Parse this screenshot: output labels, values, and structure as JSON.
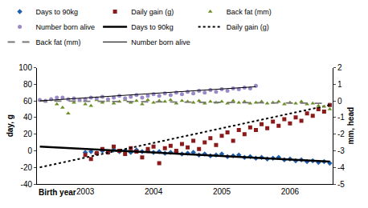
{
  "chart_data": {
    "type": "scatter",
    "x_label": "Birth year",
    "y_label": "day, g",
    "y2_label": "mm, head",
    "categories": [
      null,
      null,
      null,
      null,
      null,
      null,
      null,
      null,
      "2003",
      null,
      null,
      null,
      null,
      null,
      null,
      null,
      null,
      null,
      null,
      null,
      "2004",
      null,
      null,
      null,
      null,
      null,
      null,
      null,
      null,
      null,
      null,
      null,
      "2005",
      null,
      null,
      null,
      null,
      null,
      null,
      null,
      null,
      null,
      null,
      null,
      "2006",
      null,
      null,
      null,
      null,
      null,
      null,
      null
    ],
    "ylim": [
      -40,
      100
    ],
    "yticks": [
      -40,
      -20,
      0,
      20,
      40,
      60,
      80,
      100
    ],
    "y2lim": [
      -5,
      2
    ],
    "y2ticks": [
      -5,
      -4,
      -3,
      -2,
      -1,
      0,
      1,
      2
    ],
    "grid": false,
    "legend": "top",
    "series": [
      {
        "name": "Days to 90kg",
        "type": "scatter",
        "marker": "diamond",
        "color": "#1f5fad",
        "values": [
          null,
          null,
          null,
          null,
          null,
          null,
          null,
          null,
          -2,
          -1,
          -3,
          0,
          -2,
          1,
          -1,
          0,
          -2,
          1,
          -1,
          0,
          -2,
          -1,
          -3,
          -2,
          -1,
          -4,
          -3,
          -2,
          -5,
          -4,
          -6,
          -5,
          -4,
          -7,
          -6,
          -5,
          -8,
          -7,
          -9,
          -8,
          -10,
          -9,
          -8,
          -11,
          -10,
          -12,
          -11,
          -13,
          -12,
          -14,
          -13,
          -15
        ]
      },
      {
        "name": "Daily gain (g)",
        "type": "scatter",
        "marker": "square",
        "color": "#8b1a1a",
        "values": [
          null,
          null,
          null,
          null,
          null,
          null,
          null,
          null,
          -5,
          -10,
          -3,
          2,
          -2,
          5,
          0,
          -4,
          3,
          -1,
          -8,
          2,
          5,
          -15,
          3,
          6,
          0,
          8,
          4,
          12,
          2,
          10,
          15,
          7,
          18,
          22,
          12,
          25,
          20,
          28,
          25,
          32,
          27,
          35,
          30,
          38,
          33,
          40,
          36,
          45,
          42,
          50,
          47,
          55
        ]
      },
      {
        "name": "Back fat (mm)",
        "type": "scatter",
        "marker": "triangle-up",
        "color": "#6b8e23",
        "axis": "y2",
        "values": [
          0.05,
          -0.05,
          0.1,
          -0.2,
          -0.4,
          -0.75,
          -0.1,
          0.0,
          -0.2,
          -0.3,
          0.05,
          -0.1,
          0.0,
          -0.15,
          -0.05,
          0.05,
          -0.1,
          0.0,
          -0.2,
          0.05,
          -0.1,
          0.0,
          -0.05,
          0.05,
          -0.15,
          0.0,
          -0.05,
          -0.1,
          0.0,
          -0.15,
          -0.05,
          -0.1,
          -0.05,
          -0.15,
          0.0,
          -0.1,
          -0.05,
          -0.15,
          -0.1,
          -0.05,
          -0.15,
          -0.1,
          -0.05,
          -0.2,
          -0.1,
          -0.15,
          -0.05,
          -0.2,
          -0.15,
          -0.3,
          -0.35,
          -0.5
        ]
      },
      {
        "name": "Number born alive",
        "type": "scatter",
        "marker": "circle",
        "color": "#9a8ac8",
        "axis": "y2",
        "values": [
          0.05,
          0.0,
          0.1,
          0.2,
          0.2,
          0.1,
          0.15,
          0.05,
          0.1,
          0.2,
          0.15,
          0.25,
          0.1,
          0.2,
          0.3,
          0.15,
          0.25,
          0.35,
          0.2,
          0.3,
          0.4,
          0.3,
          0.45,
          0.35,
          0.5,
          0.4,
          0.55,
          0.45,
          0.6,
          0.5,
          0.65,
          0.55,
          0.7,
          0.6,
          0.75,
          0.7,
          0.8,
          0.75,
          0.9,
          null,
          null,
          null,
          null,
          null,
          null,
          null,
          null,
          null,
          null,
          null,
          null,
          null
        ]
      },
      {
        "name": "Days to 90kg",
        "type": "line",
        "line_style": "thick",
        "color": "#000000",
        "x": [
          0,
          51
        ],
        "values": [
          5,
          -13
        ]
      },
      {
        "name": "Daily gain (g)",
        "type": "line",
        "line_style": "dot",
        "color": "#000000",
        "x": [
          0,
          51
        ],
        "values": [
          -20,
          55
        ]
      },
      {
        "name": "Back fat (mm)",
        "type": "line",
        "line_style": "dash",
        "color": "#777777",
        "axis": "y2",
        "x": [
          0,
          51
        ],
        "values": [
          0.0,
          -0.15
        ]
      },
      {
        "name": "Number born alive",
        "type": "line",
        "line_style": "thin",
        "color": "#000000",
        "axis": "y2",
        "x": [
          0,
          38
        ],
        "values": [
          0.0,
          0.85
        ]
      }
    ]
  }
}
